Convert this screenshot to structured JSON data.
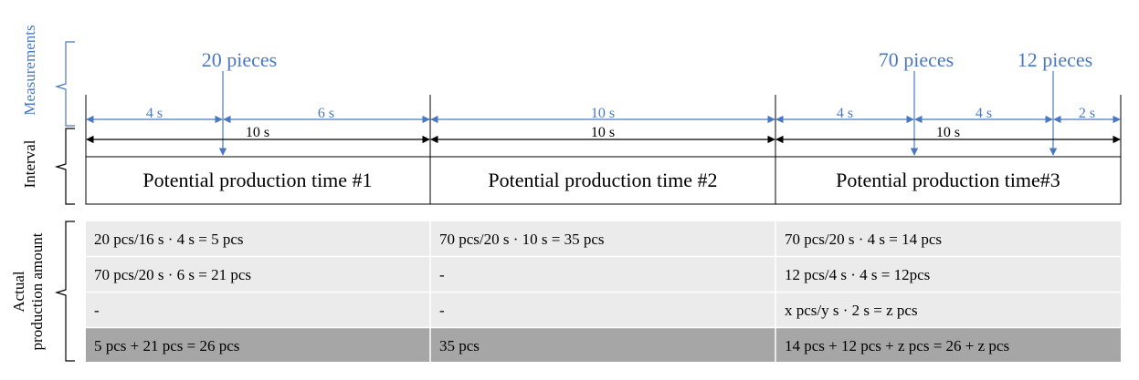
{
  "colors": {
    "blue": "#4a78c0",
    "row_light": "#ebebeb",
    "row_dark": "#a6a6a6",
    "line": "#000000"
  },
  "side_labels": {
    "measurements": "Measurements",
    "interval": "Interval",
    "actual_line1": "Actual",
    "actual_line2": "production amount"
  },
  "measurements": [
    {
      "label": "20 pieces"
    },
    {
      "label": "70 pieces"
    },
    {
      "label": "12 pieces"
    }
  ],
  "blue_dims": [
    "4 s",
    "6 s",
    "10 s",
    "4 s",
    "4 s",
    "2 s"
  ],
  "black_dims": [
    "10 s",
    "10 s",
    "10 s"
  ],
  "interval_titles": [
    "Potential production time #1",
    "Potential production time #2",
    "Potential production time#3"
  ],
  "table": {
    "rows": [
      [
        "20 pcs/16 s · 4 s = 5 pcs",
        "70 pcs/20 s · 10 s = 35 pcs",
        "70 pcs/20 s · 4 s = 14 pcs"
      ],
      [
        "70 pcs/20 s · 6 s = 21 pcs",
        "-",
        "12 pcs/4 s · 4 s = 12pcs"
      ],
      [
        "-",
        "-",
        "x pcs/y s · 2 s = z pcs"
      ],
      [
        "5 pcs + 21 pcs = 26 pcs",
        "35 pcs",
        "14 pcs + 12 pcs + z pcs = 26 + z pcs"
      ]
    ]
  }
}
